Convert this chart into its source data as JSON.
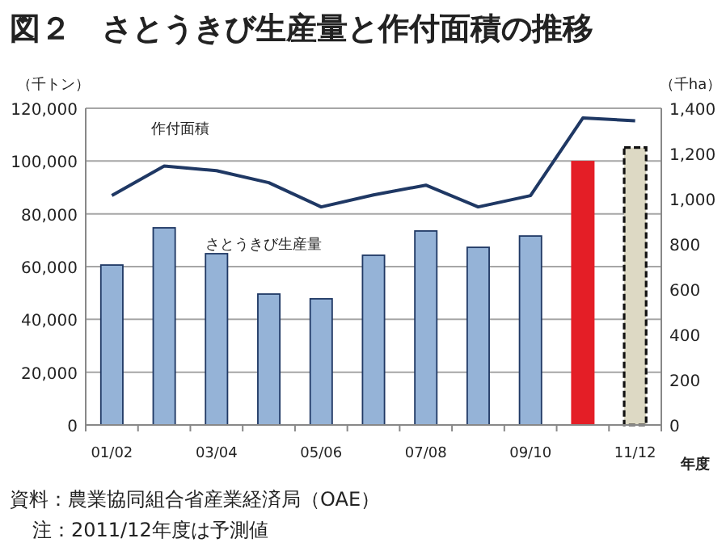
{
  "chart_data": {
    "type": "bar",
    "title": "図２　さとうきび生産量と作付面積の推移",
    "xlabel": "年度",
    "ylabel": "（千トン）",
    "y2label": "（千ha）",
    "categories": [
      "01/02",
      null,
      "03/04",
      null,
      "05/06",
      null,
      "07/08",
      null,
      "09/10",
      null,
      "11/12"
    ],
    "series": [
      {
        "name": "さとうきび生産量",
        "colors": [
          "#95b3d7",
          "#95b3d7",
          "#95b3d7",
          "#95b3d7",
          "#95b3d7",
          "#95b3d7",
          "#95b3d7",
          "#95b3d7",
          "#95b3d7",
          "#e41e26",
          "#ddd9c4"
        ],
        "values": [
          60600,
          74700,
          64900,
          49600,
          47800,
          64300,
          73500,
          67300,
          71600,
          99800,
          105100
        ]
      },
      {
        "name": "作付面積",
        "type": "line",
        "axis": "y2",
        "color": "#1f3864",
        "values": [
          1014,
          1145,
          1124,
          1071,
          964,
          1017,
          1060,
          964,
          1014,
          1357,
          1345
        ]
      }
    ],
    "ylim": [
      0,
      120000
    ],
    "yticks": [
      {
        "value": 0,
        "label": "0"
      },
      {
        "value": 20000,
        "label": "20,000"
      },
      {
        "value": 40000,
        "label": "40,000"
      },
      {
        "value": 60000,
        "label": "60,000"
      },
      {
        "value": 80000,
        "label": "80,000"
      },
      {
        "value": 100000,
        "label": "100,000"
      },
      {
        "value": 120000,
        "label": "120,000"
      }
    ],
    "y2lim": [
      0,
      1400
    ],
    "y2ticks": [
      {
        "value": 0,
        "label": "0"
      },
      {
        "value": 200,
        "label": "200"
      },
      {
        "value": 400,
        "label": "400"
      },
      {
        "value": 600,
        "label": "600"
      },
      {
        "value": 800,
        "label": "800"
      },
      {
        "value": 1000,
        "label": "1,000"
      },
      {
        "value": 1200,
        "label": "1,200"
      },
      {
        "value": 1400,
        "label": "1,400"
      }
    ],
    "grid": "y",
    "annotations": [
      "資料：農業協同組合省産業経済局（OAE）",
      "注：2011/12年度は予測値"
    ]
  }
}
